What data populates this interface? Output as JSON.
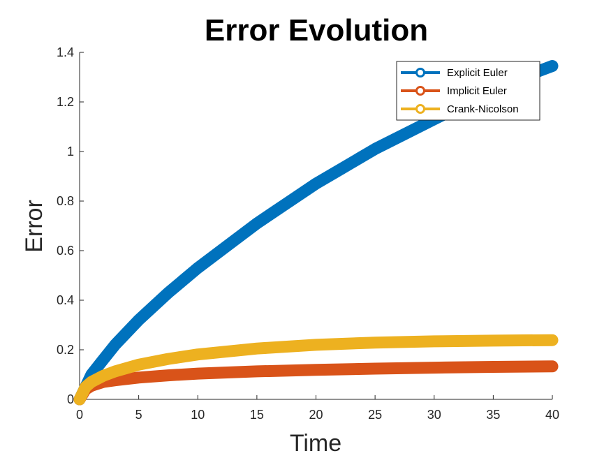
{
  "chart_data": {
    "type": "line",
    "title": "Error Evolution",
    "xlabel": "Time",
    "ylabel": "Error",
    "xlim": [
      0,
      40
    ],
    "ylim": [
      0,
      1.4
    ],
    "xticks": [
      0,
      5,
      10,
      15,
      20,
      25,
      30,
      35,
      40
    ],
    "yticks": [
      0,
      0.2,
      0.4,
      0.6,
      0.8,
      1,
      1.2,
      1.4
    ],
    "grid": false,
    "legend_position": "top-right",
    "series": [
      {
        "name": "Explicit Euler",
        "color": "#0072BD",
        "x": [
          0,
          1,
          2,
          3,
          5,
          7.5,
          10,
          12.5,
          15,
          17.5,
          20,
          22.5,
          25,
          27.5,
          30,
          32.5,
          35,
          37.5,
          40
        ],
        "y": [
          0,
          0.1,
          0.16,
          0.22,
          0.32,
          0.43,
          0.53,
          0.62,
          0.71,
          0.79,
          0.87,
          0.94,
          1.01,
          1.07,
          1.13,
          1.19,
          1.25,
          1.3,
          1.345
        ]
      },
      {
        "name": "Implicit Euler",
        "color": "#D95319",
        "x": [
          0,
          0.5,
          1,
          2,
          3,
          5,
          7.5,
          10,
          15,
          20,
          25,
          30,
          35,
          40
        ],
        "y": [
          0,
          0.04,
          0.055,
          0.07,
          0.077,
          0.088,
          0.097,
          0.104,
          0.113,
          0.119,
          0.124,
          0.128,
          0.131,
          0.133
        ]
      },
      {
        "name": "Crank-Nicolson",
        "color": "#EDB120",
        "x": [
          0,
          0.5,
          1,
          2,
          3,
          5,
          7.5,
          10,
          15,
          20,
          25,
          30,
          35,
          40
        ],
        "y": [
          0,
          0.05,
          0.07,
          0.095,
          0.113,
          0.14,
          0.163,
          0.181,
          0.205,
          0.22,
          0.229,
          0.234,
          0.237,
          0.239
        ]
      }
    ]
  }
}
